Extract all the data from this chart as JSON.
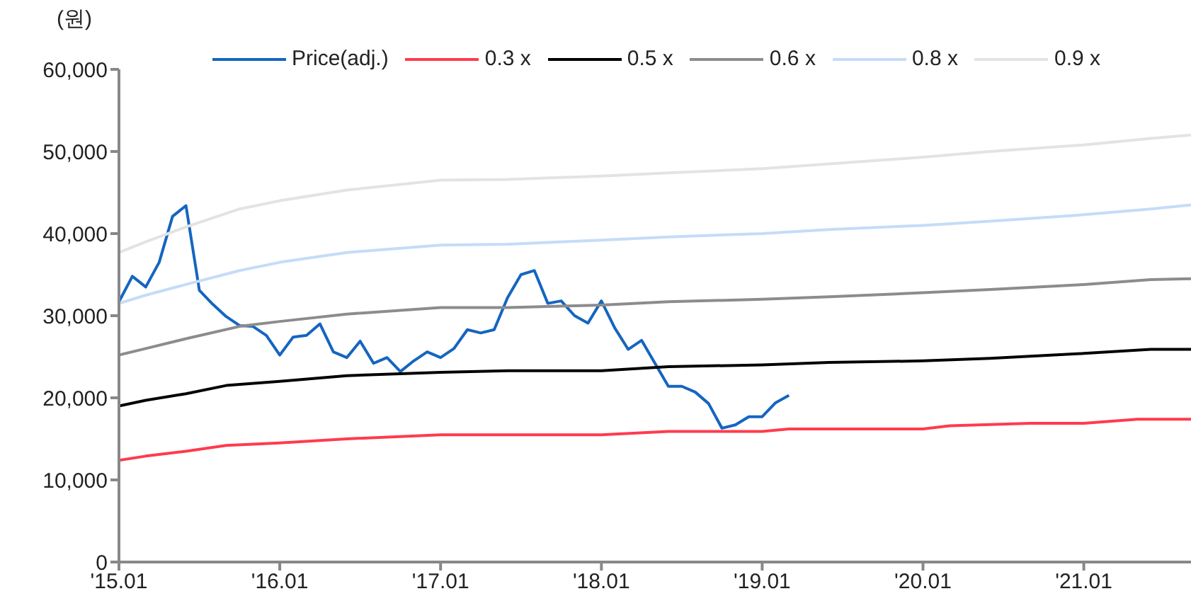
{
  "chart_data": {
    "type": "line",
    "ylabel": "(원)",
    "legend": "top",
    "grid": false,
    "marker": "none",
    "line_style": "solid",
    "xlim": [
      "2015-01",
      "2021-09"
    ],
    "xticks": [
      {
        "value": "2015-01",
        "label": "'15.01"
      },
      {
        "value": "2016-01",
        "label": "'16.01"
      },
      {
        "value": "2017-01",
        "label": "'17.01"
      },
      {
        "value": "2018-01",
        "label": "'18.01"
      },
      {
        "value": "2019-01",
        "label": "'19.01"
      },
      {
        "value": "2020-01",
        "label": "'20.01"
      },
      {
        "value": "2021-01",
        "label": "'21.01"
      }
    ],
    "ylim": [
      0,
      60000
    ],
    "yticks": [
      {
        "value": 0,
        "label": "0"
      },
      {
        "value": 10000,
        "label": "10,000"
      },
      {
        "value": 20000,
        "label": "20,000"
      },
      {
        "value": 30000,
        "label": "30,000"
      },
      {
        "value": 40000,
        "label": "40,000"
      },
      {
        "value": 50000,
        "label": "50,000"
      },
      {
        "value": 60000,
        "label": "60,000"
      }
    ],
    "series": [
      {
        "name": "Price(adj.)",
        "color": "#1565c0",
        "x": [
          "2015-01",
          "2015-02",
          "2015-03",
          "2015-04",
          "2015-05",
          "2015-06",
          "2015-07",
          "2015-08",
          "2015-09",
          "2015-10",
          "2015-11",
          "2015-12",
          "2016-01",
          "2016-02",
          "2016-03",
          "2016-04",
          "2016-05",
          "2016-06",
          "2016-07",
          "2016-08",
          "2016-09",
          "2016-10",
          "2016-11",
          "2016-12",
          "2017-01",
          "2017-02",
          "2017-03",
          "2017-04",
          "2017-05",
          "2017-06",
          "2017-07",
          "2017-08",
          "2017-09",
          "2017-10",
          "2017-11",
          "2017-12",
          "2018-01",
          "2018-02",
          "2018-03",
          "2018-04",
          "2018-05",
          "2018-06",
          "2018-07",
          "2018-08",
          "2018-09",
          "2018-10",
          "2018-11",
          "2018-12",
          "2019-01",
          "2019-02",
          "2019-03"
        ],
        "values": [
          31700,
          34800,
          33500,
          36500,
          42100,
          43400,
          33100,
          31400,
          29900,
          28800,
          28700,
          27600,
          25200,
          27400,
          27600,
          29000,
          25600,
          24900,
          26900,
          24200,
          24900,
          23200,
          24500,
          25600,
          24900,
          26000,
          28300,
          27900,
          28300,
          32200,
          35000,
          35500,
          31500,
          31800,
          30000,
          29100,
          31800,
          28500,
          25900,
          27000,
          24200,
          21400,
          21400,
          20700,
          19300,
          16300,
          16700,
          17700,
          17700,
          19400,
          20300
        ]
      },
      {
        "name": "0.3 x",
        "color": "#ff3b4e",
        "x": [
          "2015-01",
          "2015-03",
          "2015-06",
          "2015-09",
          "2016-01",
          "2016-06",
          "2017-01",
          "2017-06",
          "2018-01",
          "2018-06",
          "2019-01",
          "2019-03",
          "2020-01",
          "2020-03",
          "2020-09",
          "2021-01",
          "2021-05",
          "2021-09"
        ],
        "values": [
          12400,
          12900,
          13500,
          14200,
          14500,
          15000,
          15500,
          15500,
          15500,
          15900,
          15900,
          16200,
          16200,
          16600,
          16900,
          16900,
          17400,
          17400
        ]
      },
      {
        "name": "0.5 x",
        "color": "#000000",
        "x": [
          "2015-01",
          "2015-03",
          "2015-06",
          "2015-09",
          "2016-01",
          "2016-06",
          "2017-01",
          "2017-06",
          "2018-01",
          "2018-06",
          "2019-01",
          "2019-06",
          "2020-01",
          "2020-06",
          "2021-01",
          "2021-06",
          "2021-09"
        ],
        "values": [
          19000,
          19700,
          20500,
          21500,
          22000,
          22700,
          23100,
          23300,
          23300,
          23800,
          24000,
          24300,
          24500,
          24800,
          25400,
          25900,
          25900
        ]
      },
      {
        "name": "0.6 x",
        "color": "#8c8c8c",
        "x": [
          "2015-01",
          "2015-03",
          "2015-06",
          "2015-10",
          "2016-01",
          "2016-06",
          "2017-01",
          "2017-06",
          "2018-01",
          "2018-06",
          "2019-01",
          "2019-06",
          "2020-01",
          "2020-06",
          "2021-01",
          "2021-06",
          "2021-09"
        ],
        "values": [
          25200,
          26000,
          27200,
          28700,
          29300,
          30200,
          31000,
          31000,
          31300,
          31700,
          32000,
          32300,
          32800,
          33200,
          33800,
          34400,
          34500
        ]
      },
      {
        "name": "0.8 x",
        "color": "#c5dcf7",
        "x": [
          "2015-01",
          "2015-03",
          "2015-06",
          "2015-10",
          "2016-01",
          "2016-06",
          "2017-01",
          "2017-06",
          "2018-01",
          "2018-06",
          "2019-01",
          "2019-06",
          "2020-01",
          "2020-06",
          "2021-01",
          "2021-06",
          "2021-09"
        ],
        "values": [
          31500,
          32500,
          33800,
          35500,
          36500,
          37700,
          38600,
          38700,
          39200,
          39600,
          40000,
          40500,
          41000,
          41500,
          42300,
          43000,
          43500
        ]
      },
      {
        "name": "0.9 x",
        "color": "#e3e3e3",
        "x": [
          "2015-01",
          "2015-03",
          "2015-06",
          "2015-10",
          "2016-01",
          "2016-06",
          "2017-01",
          "2017-06",
          "2018-01",
          "2018-06",
          "2019-01",
          "2019-06",
          "2020-01",
          "2020-06",
          "2021-01",
          "2021-06",
          "2021-09"
        ],
        "values": [
          37700,
          39000,
          40800,
          43000,
          44000,
          45300,
          46500,
          46600,
          47000,
          47400,
          47900,
          48500,
          49300,
          50000,
          50800,
          51600,
          52000
        ]
      }
    ]
  }
}
